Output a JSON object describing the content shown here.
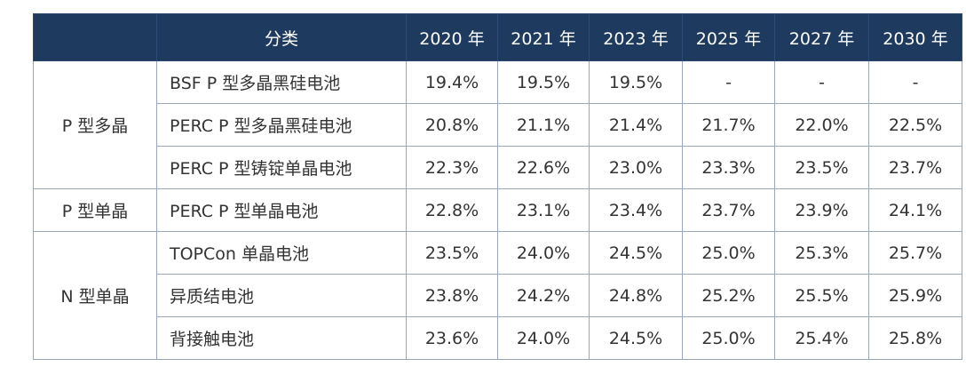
{
  "table": {
    "header": [
      "分类",
      "2020 年",
      "2021 年",
      "2023 年",
      "2025 年",
      "2027 年",
      "2030 年"
    ],
    "groups": [
      {
        "label": "P 型多晶",
        "rows": [
          {
            "name": "BSF P 型多晶黑硅电池",
            "values": [
              "19.4%",
              "19.5%",
              "19.5%",
              "-",
              "-",
              "-"
            ]
          },
          {
            "name": "PERC P 型多晶黑硅电池",
            "values": [
              "20.8%",
              "21.1%",
              "21.4%",
              "21.7%",
              "22.0%",
              "22.5%"
            ]
          },
          {
            "name": "PERC P 型铸锭单晶电池",
            "values": [
              "22.3%",
              "22.6%",
              "23.0%",
              "23.3%",
              "23.5%",
              "23.7%"
            ]
          }
        ]
      },
      {
        "label": "P 型单晶",
        "rows": [
          {
            "name": "PERC P 型单晶电池",
            "values": [
              "22.8%",
              "23.1%",
              "23.4%",
              "23.7%",
              "23.9%",
              "24.1%"
            ]
          }
        ]
      },
      {
        "label": "N 型单晶",
        "rows": [
          {
            "name": "TOPCon 单晶电池",
            "values": [
              "23.5%",
              "24.0%",
              "24.5%",
              "25.0%",
              "25.3%",
              "25.7%"
            ]
          },
          {
            "name": "异质结电池",
            "values": [
              "23.8%",
              "24.2%",
              "24.8%",
              "25.2%",
              "25.5%",
              "25.9%"
            ]
          },
          {
            "name": "背接触电池",
            "values": [
              "23.6%",
              "24.0%",
              "24.5%",
              "25.0%",
              "25.4%",
              "25.8%"
            ]
          }
        ]
      }
    ]
  }
}
